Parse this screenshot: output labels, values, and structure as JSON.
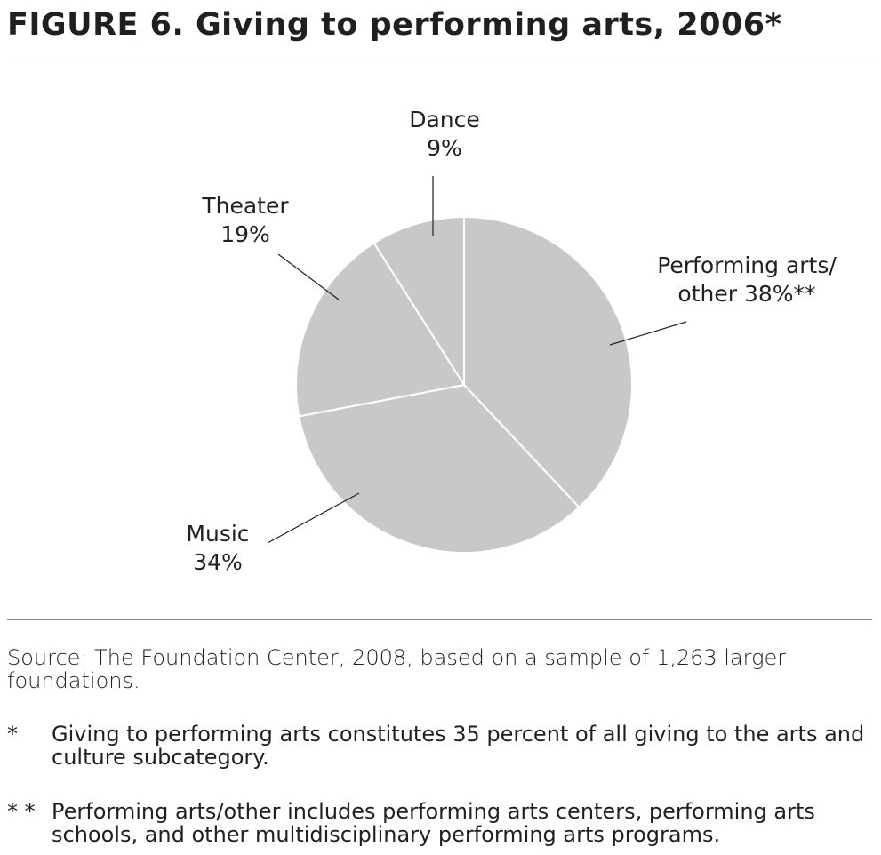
{
  "chart_data": {
    "type": "pie",
    "title": "FIGURE 6. Giving to performing arts, 2006*",
    "categories": [
      "Performing arts/ other",
      "Music",
      "Theater",
      "Dance"
    ],
    "values": [
      38,
      34,
      19,
      9
    ],
    "value_labels": [
      "38%**",
      "34%",
      "19%",
      "9%"
    ],
    "color": "#c8c8c8",
    "source": "Source: The Foundation Center, 2008, based on a sample of 1,263 larger foundations.",
    "footnotes": [
      {
        "marker": "*",
        "text": "Giving to performing arts constitutes 35 percent of all giving to the arts and culture subcategory."
      },
      {
        "marker": "* *",
        "text": "Performing arts/other includes performing arts centers, performing arts schools, and other multidisciplinary performing arts programs."
      }
    ]
  }
}
